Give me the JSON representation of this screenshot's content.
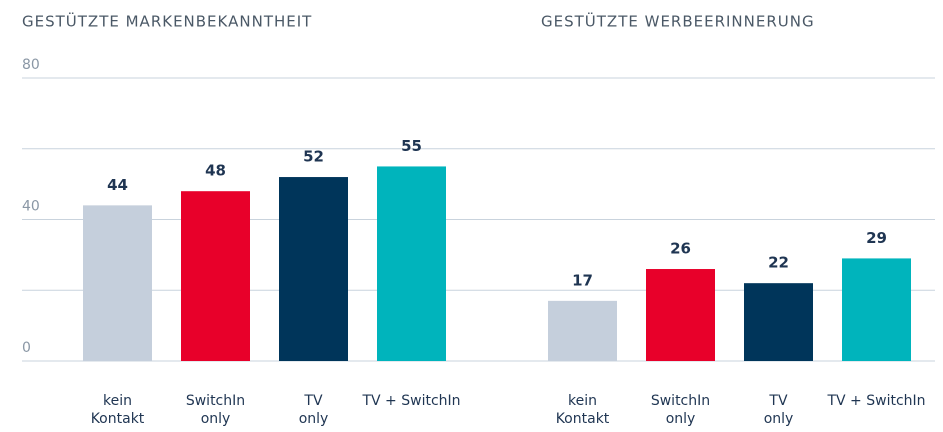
{
  "chart_data": [
    {
      "type": "bar",
      "title": "GESTÜTZTE MARKENBEKANNTHEIT",
      "categories": [
        "kein\nKontakt",
        "SwitchIn\nonly",
        "TV\nonly",
        "TV + SwitchIn"
      ],
      "values": [
        44,
        48,
        52,
        55
      ],
      "colors": [
        "#c5cfdc",
        "#e8002a",
        "#00355a",
        "#00b4bc"
      ],
      "ylim": [
        0,
        80
      ],
      "yticks": [
        0,
        40,
        80
      ],
      "minor_grid": [
        20,
        60
      ],
      "grid": true
    },
    {
      "type": "bar",
      "title": "GESTÜTZTE WERBEERINNERUNG",
      "categories": [
        "kein\nKontakt",
        "SwitchIn\nonly",
        "TV\nonly",
        "TV + SwitchIn"
      ],
      "values": [
        17,
        26,
        22,
        29
      ],
      "colors": [
        "#c5cfdc",
        "#e8002a",
        "#00355a",
        "#00b4bc"
      ],
      "ylim": [
        0,
        80
      ]
    }
  ]
}
